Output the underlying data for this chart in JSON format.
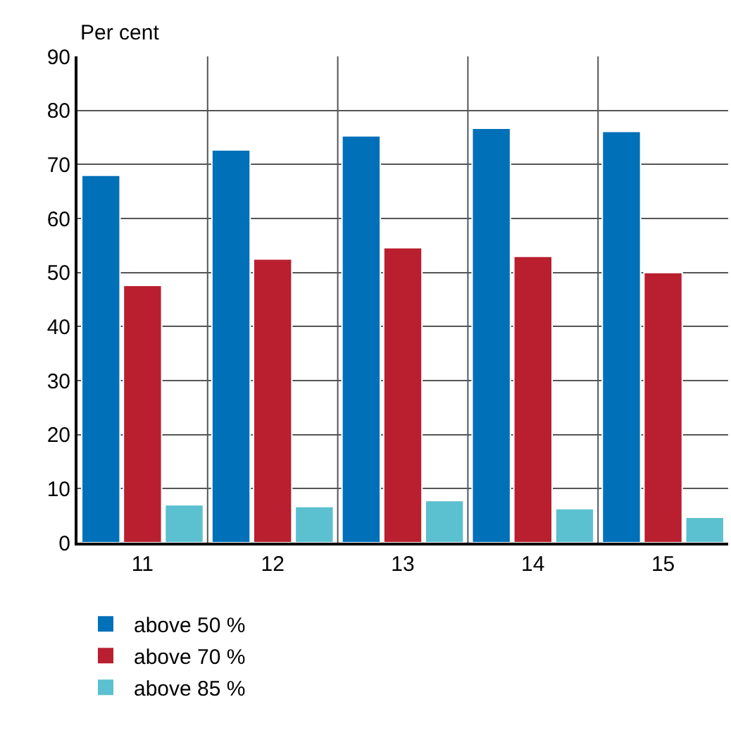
{
  "chart_data": {
    "type": "bar",
    "ylabel": "Per cent",
    "categories": [
      "11",
      "12",
      "13",
      "14",
      "15"
    ],
    "series": [
      {
        "name": "above 50 %",
        "color": "#0070b8",
        "values": [
          68,
          72.7,
          75.3,
          76.7,
          76.1
        ]
      },
      {
        "name": "above 70 %",
        "color": "#b91f2e",
        "values": [
          47.6,
          52.5,
          54.6,
          53,
          50
        ]
      },
      {
        "name": "above 85 %",
        "color": "#5bc0cf",
        "values": [
          7,
          6.7,
          7.8,
          6.3,
          4.7
        ]
      }
    ],
    "ylim": [
      0,
      90
    ],
    "yticks": [
      0,
      10,
      20,
      30,
      40,
      50,
      60,
      70,
      80,
      90
    ],
    "grid": true,
    "legend": "bottom left"
  }
}
